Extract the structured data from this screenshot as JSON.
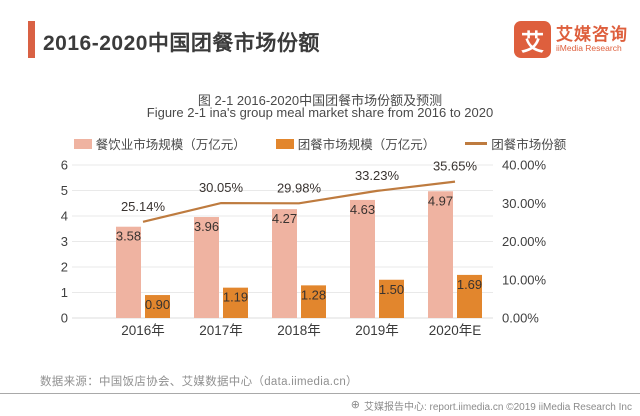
{
  "theme": {
    "accent": "#D96144",
    "logo_orange": "#DE5F3D",
    "bar1_color": "#EFB3A1",
    "bar2_color": "#E2862D",
    "line_color": "#BE7B3F"
  },
  "header": {
    "title": "2016-2020中国团餐市场份额",
    "logo": {
      "glyph": "艾",
      "name_cn": "艾媒咨询",
      "name_en": "iiMedia Research"
    }
  },
  "chart_data": {
    "type": "bar",
    "title": "图 2-1 2016-2020中国团餐市场份额及预测",
    "subtitle": "Figure 2-1 ina's group meal market share from 2016 to 2020",
    "categories": [
      "2016年",
      "2017年",
      "2018年",
      "2019年",
      "2020年E"
    ],
    "series": [
      {
        "name": "餐饮业市场规模（万亿元）",
        "type": "bar",
        "axis": "left",
        "color": "#EFB3A1",
        "values": [
          3.58,
          3.96,
          4.27,
          4.63,
          4.97
        ]
      },
      {
        "name": "团餐市场规模（万亿元）",
        "type": "bar",
        "axis": "left",
        "color": "#E2862D",
        "values": [
          0.9,
          1.19,
          1.28,
          1.5,
          1.69
        ]
      },
      {
        "name": "团餐市场份额",
        "type": "line",
        "axis": "right",
        "color": "#BE7B3F",
        "values": [
          25.14,
          30.05,
          29.98,
          33.23,
          35.65
        ],
        "labels": [
          "25.14%",
          "30.05%",
          "29.98%",
          "33.23%",
          "35.65%"
        ]
      }
    ],
    "left_axis": {
      "min": 0,
      "max": 6,
      "ticks": [
        0,
        1,
        2,
        3,
        4,
        5,
        6
      ]
    },
    "right_axis": {
      "min": 0,
      "max": 40,
      "ticks": [
        "0.00%",
        "10.00%",
        "20.00%",
        "30.00%",
        "40.00%"
      ]
    },
    "grid": true,
    "legend_position": "top"
  },
  "source_note": "数据来源：中国饭店协会、艾媒数据中心（data.iimedia.cn）",
  "footer": {
    "globe_icon": "⊕",
    "text": "艾媒报告中心: report.iimedia.cn ©2019 iiMedia Research Inc"
  }
}
